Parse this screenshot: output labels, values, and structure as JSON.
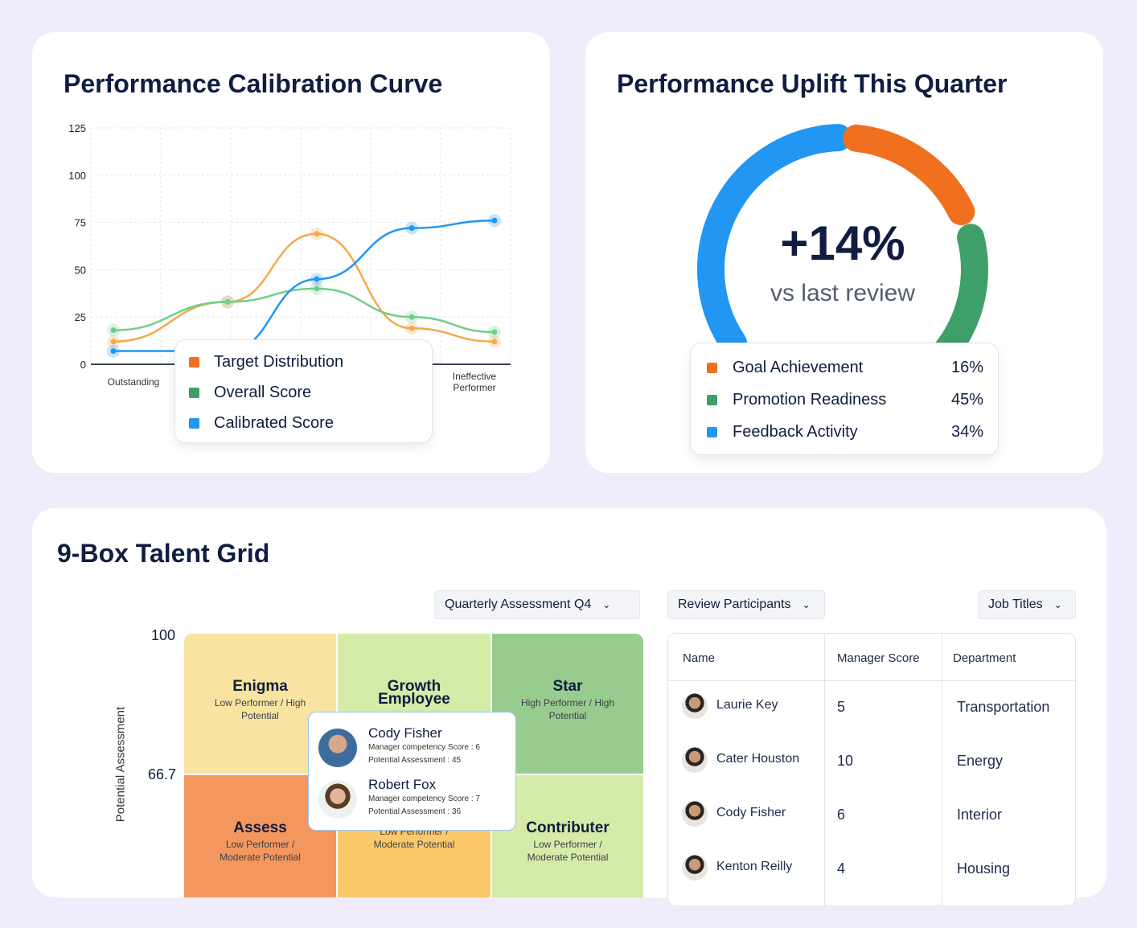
{
  "calibration": {
    "title": "Performance Calibration Curve",
    "legend": [
      {
        "label": "Target Distribution",
        "color": "#f07020"
      },
      {
        "label": "Overall Score",
        "color": "#3f9f68"
      },
      {
        "label": "Calibrated Score",
        "color": "#2196f3"
      }
    ]
  },
  "chart_data": {
    "type": "line",
    "title": "Performance Calibration Curve",
    "ylim": [
      0,
      125
    ],
    "yticks": [
      0,
      25,
      50,
      75,
      100,
      125
    ],
    "grid": true,
    "legend": "bottom-center overlay",
    "xlabels": [
      "Outstanding",
      "Ineffective Performer"
    ],
    "series": [
      {
        "name": "Target Distribution",
        "color": "#f5a94a",
        "values": [
          12,
          33,
          69,
          19,
          12
        ]
      },
      {
        "name": "Overall Score",
        "color": "#6fcf8a",
        "values": [
          18,
          33,
          40,
          25,
          17
        ]
      },
      {
        "name": "Calibrated Score",
        "color": "#2196f3",
        "values": [
          7,
          7,
          45,
          72,
          76
        ]
      }
    ]
  },
  "uplift": {
    "title": "Performance Uplift This Quarter",
    "value": "+14%",
    "subtitle": "vs last review",
    "items": [
      {
        "label": "Goal Achievement",
        "pct": "16%",
        "color": "#f07020"
      },
      {
        "label": "Promotion Readiness",
        "pct": "45%",
        "color": "#3f9f68"
      },
      {
        "label": "Feedback Activity",
        "pct": "34%",
        "color": "#2196f3"
      }
    ]
  },
  "grid": {
    "title": "9-Box Talent Grid",
    "y_axis_label": "Potential Assessment",
    "y_ticks": [
      "100",
      "66.7"
    ],
    "filter": "Quarterly Assessment Q4",
    "cells": [
      {
        "name": "Enigma",
        "desc": "Low Performer / High Potential",
        "color": "#f8e3a0"
      },
      {
        "name": "Growth Employee",
        "desc": "Low Performer /",
        "color": "#d5eba8"
      },
      {
        "name": "Star",
        "desc": "High Performer / High Potential",
        "color": "#97cc8e"
      },
      {
        "name": "Assess",
        "desc": "Low Performer / Moderate Potential",
        "color": "#f3975e"
      },
      {
        "name": "",
        "desc": "Low Performer / Moderate Potential",
        "color": "#fcc96a"
      },
      {
        "name": "Contributer",
        "desc": "Low Performer / Moderate Potential",
        "color": "#d5eba8"
      }
    ],
    "tooltip": [
      {
        "name": "Cody Fisher",
        "score": "Manager competency Score : 6",
        "potential": "Potential Assessment : 45"
      },
      {
        "name": "Robert Fox",
        "score": "Manager competency Score : 7",
        "potential": "Potential Assessment : 36"
      }
    ]
  },
  "participants": {
    "filter": "Review Participants",
    "job_filter": "Job Titles",
    "columns": [
      "Name",
      "Manager Score",
      "Department"
    ],
    "rows": [
      {
        "name": "Laurie Key",
        "score": "5",
        "dept": "Transportation"
      },
      {
        "name": "Cater Houston",
        "score": "10",
        "dept": "Energy"
      },
      {
        "name": "Cody Fisher",
        "score": "6",
        "dept": "Interior"
      },
      {
        "name": "Kenton Reilly",
        "score": "4",
        "dept": "Housing"
      }
    ]
  }
}
